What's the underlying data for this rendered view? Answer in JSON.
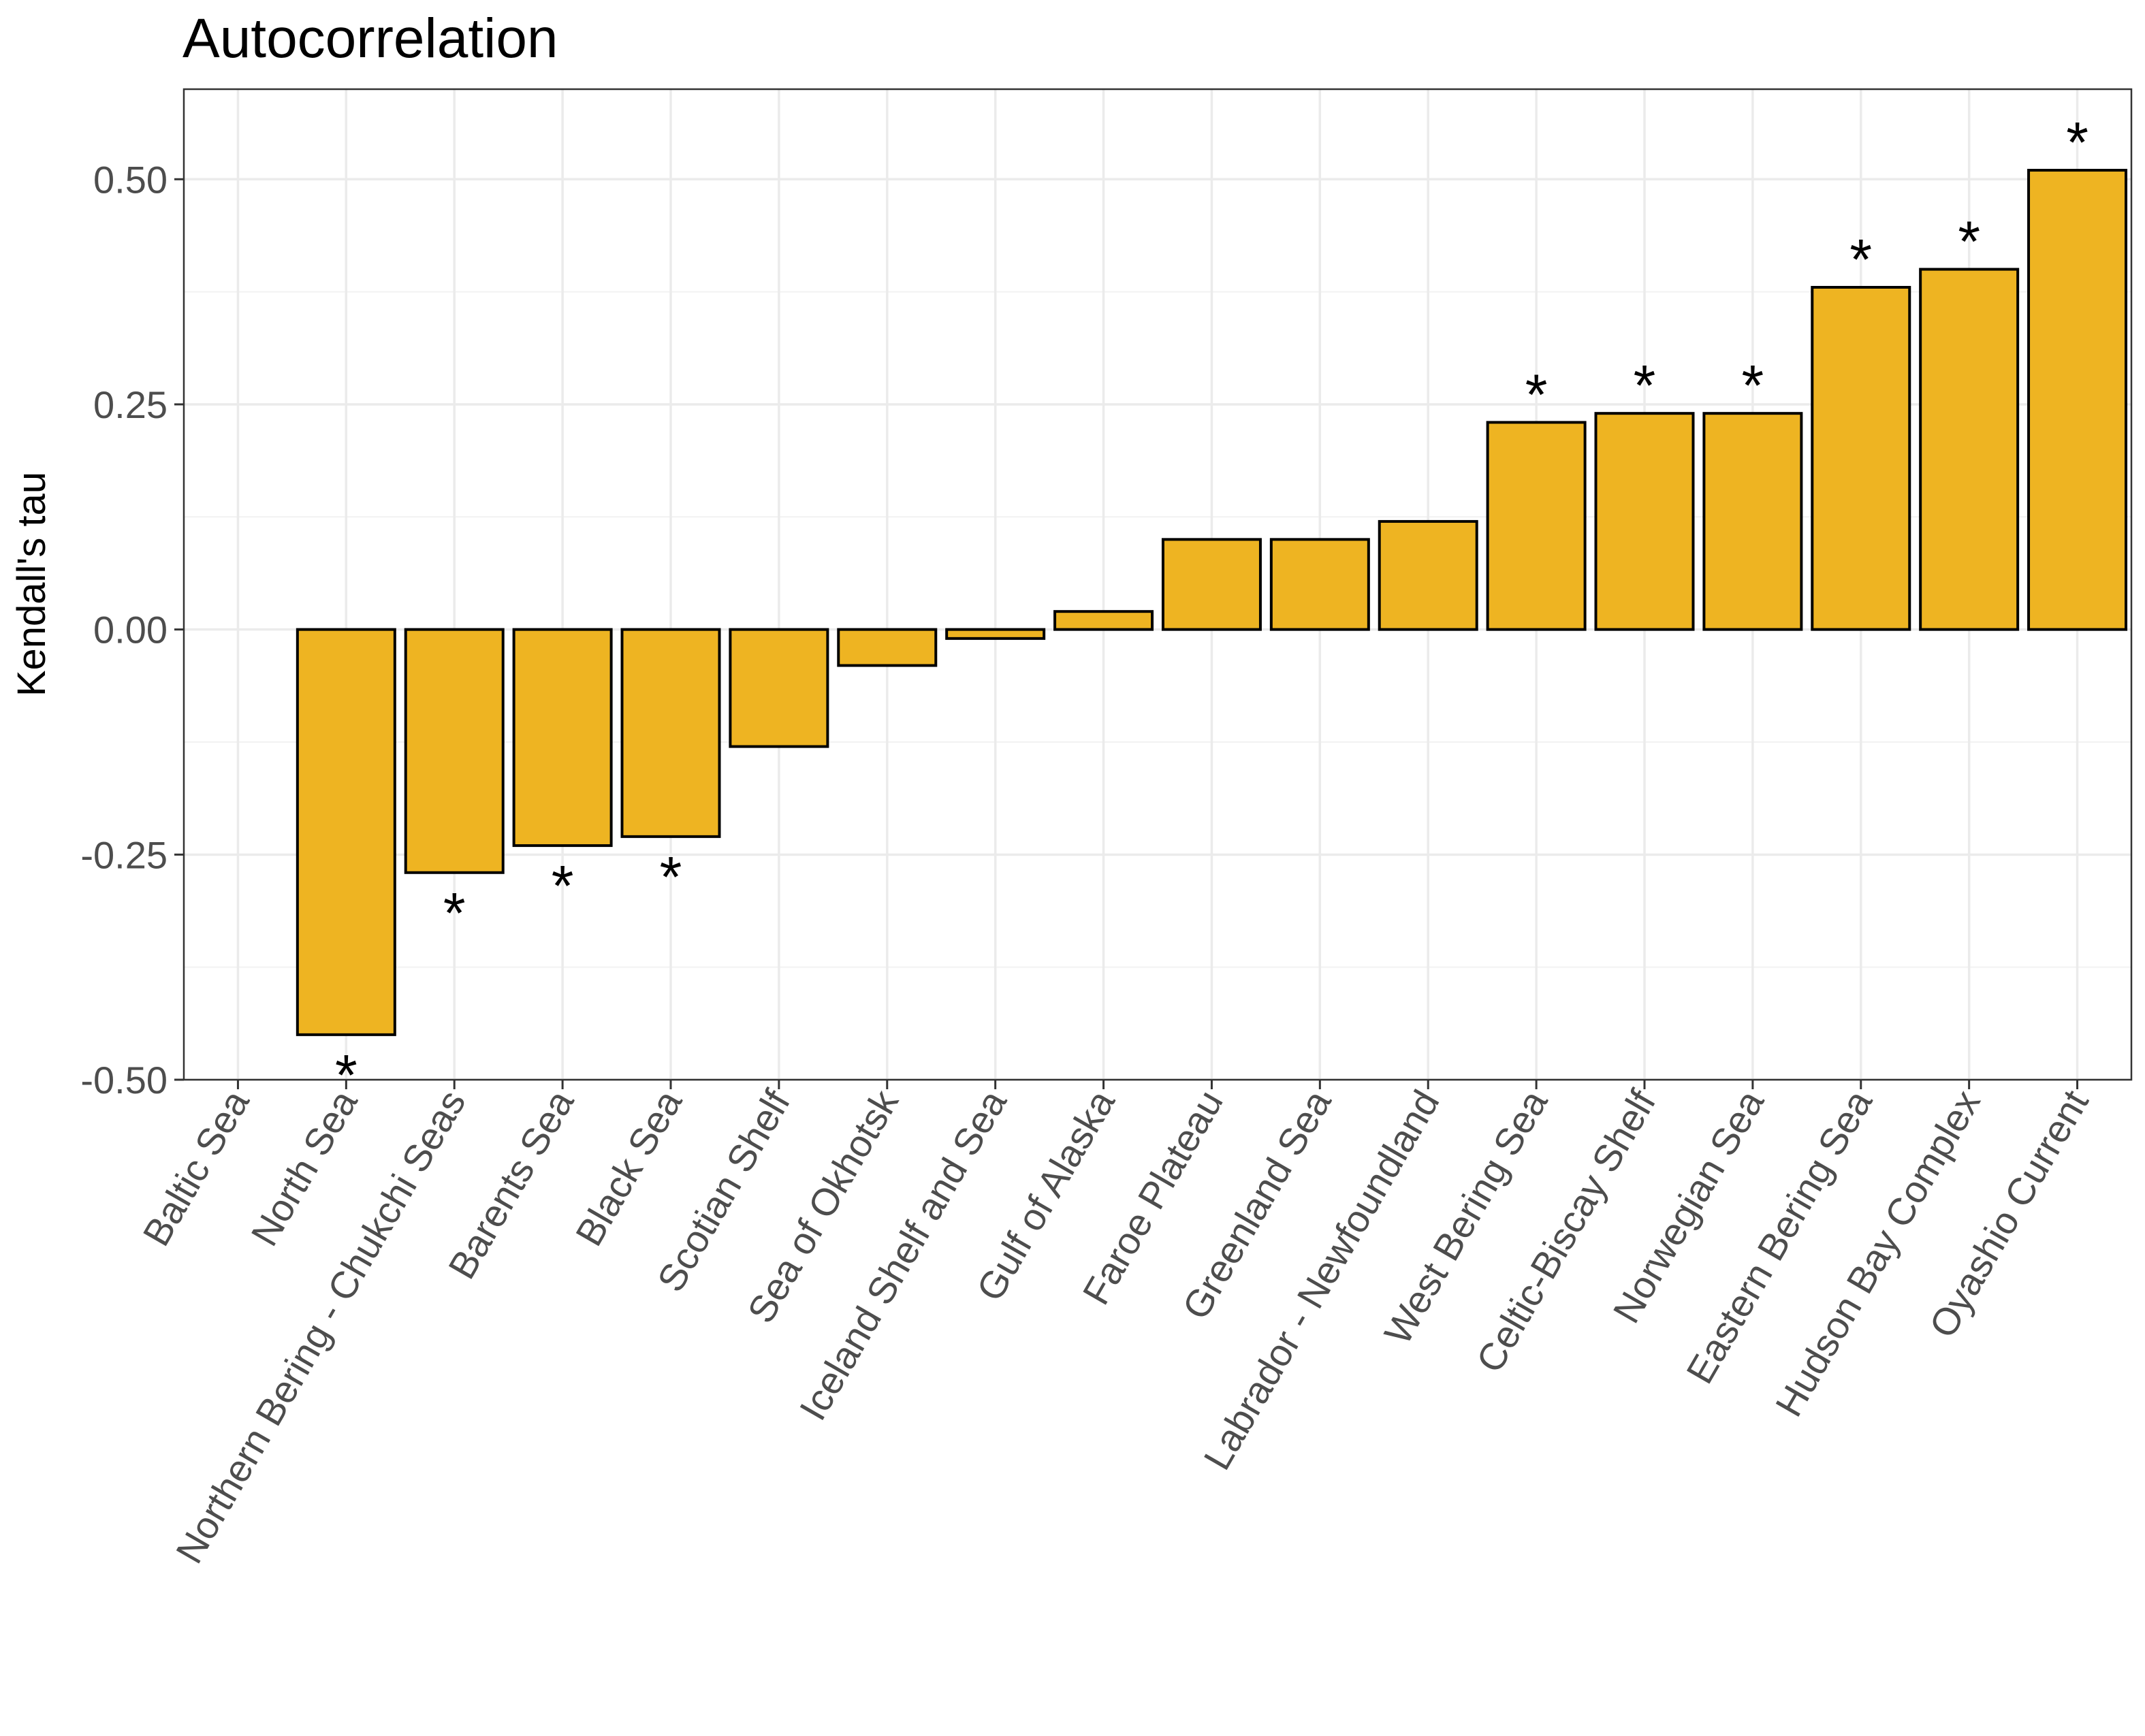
{
  "chart_data": {
    "type": "bar",
    "title": "Autocorrelation",
    "xlabel": "",
    "ylabel": "Kendall's tau",
    "ylim": [
      -0.5,
      0.6
    ],
    "yticks": [
      "-0.50",
      "-0.25",
      "0.00",
      "0.25",
      "0.50"
    ],
    "grid": true,
    "bar_color": "#EEB422",
    "categories": [
      "Baltic Sea",
      "North Sea",
      "Northern Bering - Chukchi Seas",
      "Barents Sea",
      "Black Sea",
      "Scotian Shelf",
      "Sea of Okhotsk",
      "Iceland Shelf and Sea",
      "Gulf of Alaska",
      "Faroe Plateau",
      "Greenland Sea",
      "Labrador - Newfoundland",
      "West Bering Sea",
      "Celtic-Biscay Shelf",
      "Norwegian Sea",
      "Eastern Bering Sea",
      "Hudson Bay Complex",
      "Oyashio Current"
    ],
    "values": [
      0,
      -0.45,
      -0.27,
      -0.24,
      -0.23,
      -0.13,
      -0.04,
      -0.01,
      0.02,
      0.1,
      0.1,
      0.12,
      0.23,
      0.24,
      0.24,
      0.38,
      0.4,
      0.51
    ],
    "significant": [
      false,
      true,
      true,
      true,
      true,
      false,
      false,
      false,
      false,
      false,
      false,
      false,
      true,
      true,
      true,
      true,
      true,
      true
    ],
    "significance_marker": "*"
  }
}
